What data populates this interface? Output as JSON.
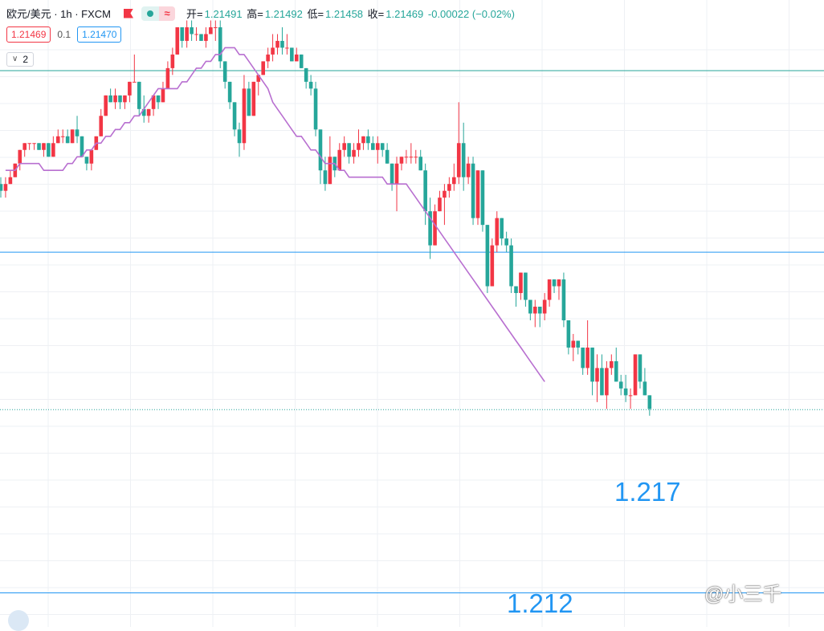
{
  "legend": {
    "symbol": "欧元/美元 · 1h · FXCM",
    "ohlc": [
      {
        "label": "开=",
        "value": "1.21491"
      },
      {
        "label": "高=",
        "value": "1.21492"
      },
      {
        "label": "低=",
        "value": "1.21458"
      },
      {
        "label": "收=",
        "value": "1.21469"
      }
    ],
    "change": "-0.00022 (−0.02%)",
    "bid": "1.21469",
    "spread": "0.1",
    "ask": "1.21470",
    "indicators_count": "2"
  },
  "annotations": {
    "upper": "1.217",
    "lower": "1.212"
  },
  "watermark": "@小三千",
  "colors": {
    "up": "#f23645",
    "down": "#26a69a",
    "ma": "#b86fd0",
    "level": "#2196f3"
  },
  "chart_data": {
    "type": "candlestick",
    "instrument": "欧元/美元",
    "timeframe": "1h",
    "source": "FXCM",
    "levels": [
      1.217,
      1.212
    ],
    "candles": [
      [
        1.218,
        1.2181,
        1.2178,
        1.2179
      ],
      [
        1.2179,
        1.2181,
        1.2178,
        1.218
      ],
      [
        1.218,
        1.2182,
        1.218,
        1.2181
      ],
      [
        1.2181,
        1.2183,
        1.2181,
        1.2183
      ],
      [
        1.2183,
        1.2185,
        1.2182,
        1.2185
      ],
      [
        1.2185,
        1.2186,
        1.2184,
        1.2186
      ],
      [
        1.2186,
        1.2186,
        1.2185,
        1.2186
      ],
      [
        1.2186,
        1.2186,
        1.2185,
        1.2186
      ],
      [
        1.2186,
        1.2186,
        1.2185,
        1.2185
      ],
      [
        1.2185,
        1.2186,
        1.2184,
        1.2186
      ],
      [
        1.2186,
        1.2186,
        1.2184,
        1.2184
      ],
      [
        1.2184,
        1.2187,
        1.2184,
        1.2186
      ],
      [
        1.2186,
        1.2188,
        1.2186,
        1.2187
      ],
      [
        1.2187,
        1.2188,
        1.2186,
        1.2187
      ],
      [
        1.2187,
        1.2188,
        1.2186,
        1.2186
      ],
      [
        1.2186,
        1.2188,
        1.2186,
        1.2188
      ],
      [
        1.2188,
        1.219,
        1.2186,
        1.2187
      ],
      [
        1.2187,
        1.2187,
        1.2184,
        1.2184
      ],
      [
        1.2184,
        1.2184,
        1.2182,
        1.2183
      ],
      [
        1.2183,
        1.2185,
        1.2182,
        1.2185
      ],
      [
        1.2185,
        1.2187,
        1.2185,
        1.2187
      ],
      [
        1.2187,
        1.2191,
        1.2187,
        1.219
      ],
      [
        1.219,
        1.2193,
        1.219,
        1.2193
      ],
      [
        1.2193,
        1.2194,
        1.2192,
        1.2192
      ],
      [
        1.2192,
        1.2194,
        1.2191,
        1.2193
      ],
      [
        1.2193,
        1.2193,
        1.2191,
        1.2192
      ],
      [
        1.2192,
        1.2193,
        1.2191,
        1.2193
      ],
      [
        1.2193,
        1.2195,
        1.2192,
        1.2195
      ],
      [
        1.2195,
        1.2199,
        1.2195,
        1.2195
      ],
      [
        1.2195,
        1.2195,
        1.219,
        1.2191
      ],
      [
        1.2191,
        1.2193,
        1.2189,
        1.219
      ],
      [
        1.219,
        1.2191,
        1.2189,
        1.2191
      ],
      [
        1.2191,
        1.2193,
        1.219,
        1.2193
      ],
      [
        1.2193,
        1.2193,
        1.2191,
        1.2192
      ],
      [
        1.2192,
        1.2195,
        1.2192,
        1.2194
      ],
      [
        1.2194,
        1.2198,
        1.2194,
        1.2197
      ],
      [
        1.2197,
        1.22,
        1.2196,
        1.2199
      ],
      [
        1.2199,
        1.2203,
        1.2199,
        1.2203
      ],
      [
        1.2203,
        1.2203,
        1.22,
        1.2201
      ],
      [
        1.2201,
        1.2204,
        1.22,
        1.2203
      ],
      [
        1.2203,
        1.2204,
        1.2201,
        1.2202
      ],
      [
        1.2202,
        1.2203,
        1.2201,
        1.2202
      ],
      [
        1.2202,
        1.2202,
        1.2201,
        1.2201
      ],
      [
        1.2201,
        1.2203,
        1.22,
        1.2202
      ],
      [
        1.2202,
        1.2204,
        1.2202,
        1.2203
      ],
      [
        1.2203,
        1.2204,
        1.2201,
        1.2203
      ],
      [
        1.2203,
        1.2204,
        1.2197,
        1.2198
      ],
      [
        1.2198,
        1.2198,
        1.2194,
        1.2195
      ],
      [
        1.2195,
        1.2195,
        1.2191,
        1.2192
      ],
      [
        1.2192,
        1.2192,
        1.2187,
        1.2188
      ],
      [
        1.2188,
        1.2189,
        1.2184,
        1.2186
      ],
      [
        1.2186,
        1.2196,
        1.2185,
        1.2194
      ],
      [
        1.2194,
        1.2195,
        1.219,
        1.219
      ],
      [
        1.219,
        1.2195,
        1.219,
        1.2195
      ],
      [
        1.2195,
        1.2196,
        1.2193,
        1.2196
      ],
      [
        1.2196,
        1.2198,
        1.2196,
        1.2198
      ],
      [
        1.2198,
        1.22,
        1.2197,
        1.2199
      ],
      [
        1.2199,
        1.2202,
        1.2198,
        1.22
      ],
      [
        1.22,
        1.2202,
        1.2199,
        1.2201
      ],
      [
        1.2201,
        1.2203,
        1.2199,
        1.22
      ],
      [
        1.22,
        1.2202,
        1.2199,
        1.22
      ],
      [
        1.22,
        1.22,
        1.2198,
        1.2198
      ],
      [
        1.2198,
        1.22,
        1.2198,
        1.2199
      ],
      [
        1.2199,
        1.2199,
        1.2197,
        1.2197
      ],
      [
        1.2197,
        1.2197,
        1.2194,
        1.2195
      ],
      [
        1.2195,
        1.2196,
        1.2193,
        1.2194
      ],
      [
        1.2194,
        1.2195,
        1.2187,
        1.2188
      ],
      [
        1.2188,
        1.2188,
        1.218,
        1.2182
      ],
      [
        1.2182,
        1.2184,
        1.2179,
        1.218
      ],
      [
        1.218,
        1.2187,
        1.218,
        1.2184
      ],
      [
        1.2184,
        1.2184,
        1.2181,
        1.2182
      ],
      [
        1.2182,
        1.2186,
        1.2182,
        1.2185
      ],
      [
        1.2185,
        1.2187,
        1.2184,
        1.2186
      ],
      [
        1.2186,
        1.2186,
        1.2183,
        1.2184
      ],
      [
        1.2184,
        1.2186,
        1.2183,
        1.2185
      ],
      [
        1.2185,
        1.2188,
        1.2184,
        1.2186
      ],
      [
        1.2186,
        1.2187,
        1.2185,
        1.2187
      ],
      [
        1.2187,
        1.2188,
        1.2185,
        1.2186
      ],
      [
        1.2186,
        1.2187,
        1.2185,
        1.2185
      ],
      [
        1.2185,
        1.2187,
        1.2183,
        1.2186
      ],
      [
        1.2186,
        1.2186,
        1.2184,
        1.2185
      ],
      [
        1.2185,
        1.2186,
        1.2183,
        1.2183
      ],
      [
        1.2183,
        1.2183,
        1.2179,
        1.218
      ],
      [
        1.218,
        1.2184,
        1.2176,
        1.2183
      ],
      [
        1.2183,
        1.2184,
        1.2182,
        1.2184
      ],
      [
        1.2184,
        1.2185,
        1.2183,
        1.2184
      ],
      [
        1.2184,
        1.2186,
        1.2183,
        1.2184
      ],
      [
        1.2184,
        1.2185,
        1.2183,
        1.2184
      ],
      [
        1.2184,
        1.2185,
        1.2182,
        1.2182
      ],
      [
        1.2182,
        1.2183,
        1.2174,
        1.2176
      ],
      [
        1.2176,
        1.2178,
        1.2169,
        1.2171
      ],
      [
        1.2171,
        1.2177,
        1.2171,
        1.2176
      ],
      [
        1.2176,
        1.2179,
        1.2176,
        1.2178
      ],
      [
        1.2178,
        1.218,
        1.2174,
        1.2179
      ],
      [
        1.2179,
        1.2181,
        1.2178,
        1.218
      ],
      [
        1.218,
        1.2183,
        1.2179,
        1.2181
      ],
      [
        1.2181,
        1.2192,
        1.218,
        1.2186
      ],
      [
        1.2186,
        1.2189,
        1.2179,
        1.2181
      ],
      [
        1.2181,
        1.2184,
        1.218,
        1.2183
      ],
      [
        1.2183,
        1.2184,
        1.2174,
        1.2175
      ],
      [
        1.2175,
        1.2182,
        1.2174,
        1.2182
      ],
      [
        1.2182,
        1.2182,
        1.2173,
        1.2174
      ],
      [
        1.2174,
        1.2174,
        1.2164,
        1.2165
      ],
      [
        1.2165,
        1.2172,
        1.2165,
        1.2171
      ],
      [
        1.2171,
        1.2176,
        1.217,
        1.2175
      ],
      [
        1.2175,
        1.2175,
        1.2171,
        1.2172
      ],
      [
        1.2172,
        1.2173,
        1.217,
        1.2171
      ],
      [
        1.2171,
        1.2172,
        1.2164,
        1.2165
      ],
      [
        1.2165,
        1.2165,
        1.2162,
        1.2164
      ],
      [
        1.2164,
        1.2167,
        1.2163,
        1.2167
      ],
      [
        1.2167,
        1.2167,
        1.2162,
        1.2163
      ],
      [
        1.2163,
        1.2163,
        1.216,
        1.2161
      ],
      [
        1.2161,
        1.2163,
        1.2159,
        1.2162
      ],
      [
        1.2162,
        1.2162,
        1.2159,
        1.2161
      ],
      [
        1.2161,
        1.2164,
        1.216,
        1.2163
      ],
      [
        1.2163,
        1.2166,
        1.2162,
        1.2166
      ],
      [
        1.2166,
        1.2166,
        1.2164,
        1.2165
      ],
      [
        1.2165,
        1.2166,
        1.2163,
        1.2166
      ],
      [
        1.2166,
        1.2167,
        1.2159,
        1.216
      ],
      [
        1.216,
        1.216,
        1.2155,
        1.2156
      ],
      [
        1.2156,
        1.2158,
        1.2154,
        1.2157
      ],
      [
        1.2157,
        1.2157,
        1.2155,
        1.2156
      ],
      [
        1.2156,
        1.2156,
        1.2152,
        1.2153
      ],
      [
        1.2153,
        1.216,
        1.2152,
        1.2156
      ],
      [
        1.2156,
        1.2156,
        1.2149,
        1.2151
      ],
      [
        1.2151,
        1.2155,
        1.2148,
        1.2153
      ],
      [
        1.2153,
        1.2155,
        1.2149,
        1.2149
      ],
      [
        1.2149,
        1.2154,
        1.2147,
        1.2153
      ],
      [
        1.2153,
        1.2155,
        1.2152,
        1.2154
      ],
      [
        1.2154,
        1.2156,
        1.2151,
        1.2151
      ],
      [
        1.2151,
        1.2152,
        1.2149,
        1.215
      ],
      [
        1.215,
        1.2152,
        1.2148,
        1.2149
      ],
      [
        1.2149,
        1.215,
        1.2147,
        1.2149
      ],
      [
        1.2149,
        1.2155,
        1.2149,
        1.2155
      ],
      [
        1.2155,
        1.2155,
        1.215,
        1.2151
      ],
      [
        1.2151,
        1.2153,
        1.2149,
        1.2149
      ],
      [
        1.2149,
        1.2149,
        1.2146,
        1.2147
      ]
    ],
    "ma_from_index": 1,
    "ma": [
      1.2182,
      1.2182,
      1.2182,
      1.2183,
      1.2183,
      1.2183,
      1.2183,
      1.2183,
      1.2182,
      1.2182,
      1.2182,
      1.2182,
      1.2182,
      1.2183,
      1.2183,
      1.2184,
      1.2184,
      1.2185,
      1.2185,
      1.2186,
      1.2186,
      1.2187,
      1.2187,
      1.2188,
      1.2188,
      1.2189,
      1.2189,
      1.219,
      1.219,
      1.2191,
      1.2192,
      1.2193,
      1.2194,
      1.2194,
      1.2194,
      1.2194,
      1.2194,
      1.2195,
      1.2195,
      1.2196,
      1.2197,
      1.2197,
      1.2198,
      1.2198,
      1.2199,
      1.2199,
      1.22,
      1.22,
      1.22,
      1.2199,
      1.2199,
      1.2198,
      1.2197,
      1.2196,
      1.2195,
      1.2194,
      1.2192,
      1.2191,
      1.219,
      1.2189,
      1.2188,
      1.2187,
      1.2187,
      1.2186,
      1.2185,
      1.2185,
      1.2184,
      1.2183,
      1.2183,
      1.2183,
      1.2182,
      1.2182,
      1.2181,
      1.2181,
      1.2181,
      1.2181,
      1.2181,
      1.2181,
      1.2181,
      1.2181,
      1.218,
      1.218,
      1.218,
      1.218,
      1.218,
      1.2179,
      1.2178,
      1.2177,
      1.2176,
      1.2175,
      1.2174,
      1.2173,
      1.2172,
      1.2171,
      1.217,
      1.2169,
      1.2168,
      1.2167,
      1.2166,
      1.2165,
      1.2164,
      1.2163,
      1.2162,
      1.2161,
      1.216,
      1.2159,
      1.2158,
      1.2157,
      1.2156,
      1.2155,
      1.2154,
      1.2153,
      1.2152,
      1.2151
    ],
    "last_price": 1.21469,
    "ylim": [
      1.2115,
      1.2207
    ]
  }
}
